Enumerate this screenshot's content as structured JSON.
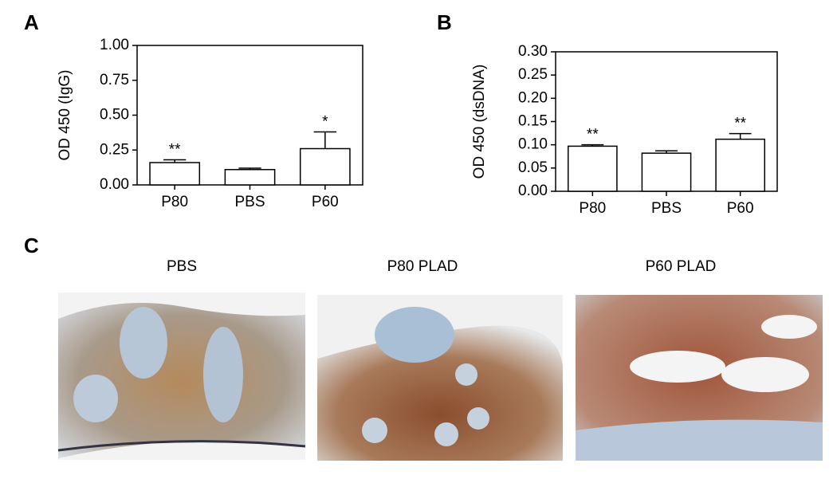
{
  "chart_data": [
    {
      "type": "bar",
      "panel": "A",
      "ylabel": "OD 450 (IgG)",
      "categories": [
        "P80",
        "PBS",
        "P60"
      ],
      "values": [
        0.16,
        0.11,
        0.26
      ],
      "errors": [
        0.02,
        0.01,
        0.12
      ],
      "annotations": [
        {
          "category": "P80",
          "text": "**"
        },
        {
          "category": "P60",
          "text": "*"
        }
      ],
      "color": "#ffffff",
      "ylim": [
        0,
        1
      ],
      "yticks": [
        {
          "value": 0,
          "label": "0.00"
        },
        {
          "value": 0.25,
          "label": "0.25"
        },
        {
          "value": 0.5,
          "label": "0.50"
        },
        {
          "value": 0.75,
          "label": "0.75"
        },
        {
          "value": 1,
          "label": "1.00"
        }
      ]
    },
    {
      "type": "bar",
      "panel": "B",
      "ylabel": "OD 450 (dsDNA)",
      "categories": [
        "P80",
        "PBS",
        "P60"
      ],
      "values": [
        0.097,
        0.082,
        0.112
      ],
      "errors": [
        0.003,
        0.005,
        0.012
      ],
      "annotations": [
        {
          "category": "P80",
          "text": "**"
        },
        {
          "category": "P60",
          "text": "**"
        }
      ],
      "color": "#ffffff",
      "ylim": [
        0,
        0.3
      ],
      "yticks": [
        {
          "value": 0,
          "label": "0.00"
        },
        {
          "value": 0.05,
          "label": "0.05"
        },
        {
          "value": 0.1,
          "label": "0.10"
        },
        {
          "value": 0.15,
          "label": "0.15"
        },
        {
          "value": 0.2,
          "label": "0.20"
        },
        {
          "value": 0.25,
          "label": "0.25"
        },
        {
          "value": 0.3,
          "label": "0.30"
        }
      ]
    }
  ],
  "panel_c": {
    "label": "C",
    "images": [
      {
        "caption": "PBS"
      },
      {
        "caption": "P80 PLAD"
      },
      {
        "caption": "P60 PLAD"
      }
    ]
  }
}
